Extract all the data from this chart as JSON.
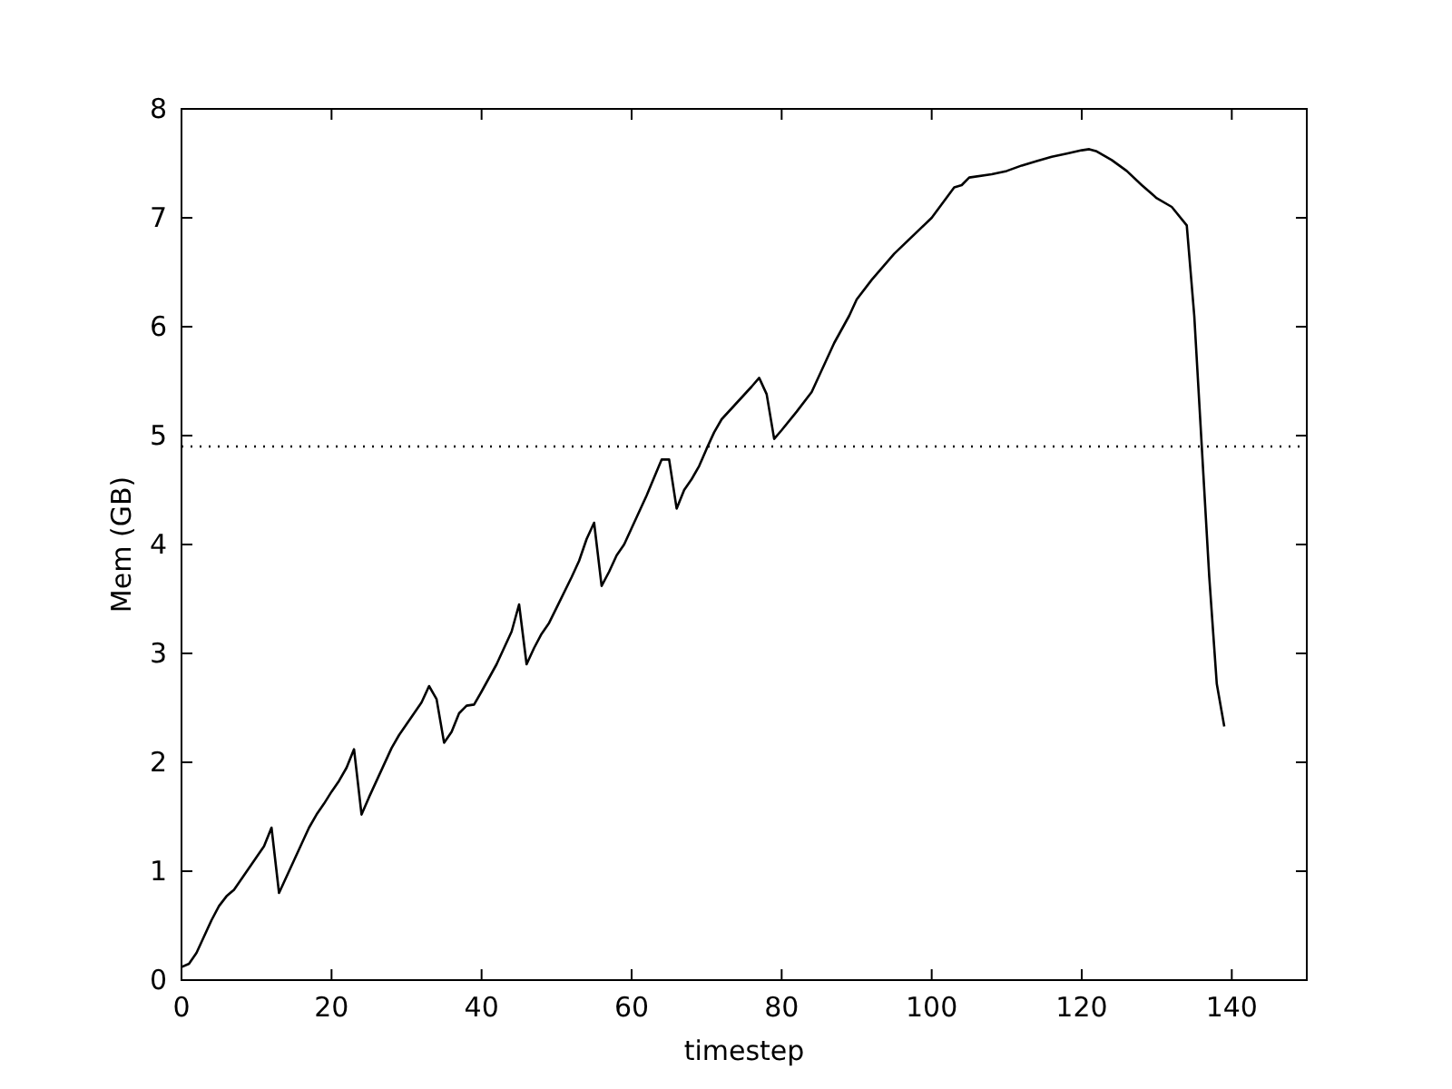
{
  "chart_data": {
    "type": "line",
    "xlabel": "timestep",
    "ylabel": "Mem (GB)",
    "xlim": [
      0,
      150
    ],
    "xticks": [
      0,
      20,
      40,
      60,
      80,
      100,
      120,
      140
    ],
    "ylim": [
      0,
      8
    ],
    "yticks": [
      0,
      1,
      2,
      3,
      4,
      5,
      6,
      7,
      8
    ],
    "grid": false,
    "line_style": "solid",
    "marker": "none",
    "ref_lines": [
      {
        "axis": "y",
        "value": 4.9,
        "line_style": "dotted",
        "color": "#000000"
      }
    ],
    "series": [
      {
        "color": "#000000",
        "x": [
          0,
          1,
          2,
          3,
          4,
          5,
          6,
          7,
          8,
          9,
          10,
          11,
          12,
          13,
          14,
          15,
          16,
          17,
          18,
          19,
          20,
          21,
          22,
          23,
          24,
          25,
          26,
          27,
          28,
          29,
          30,
          31,
          32,
          33,
          34,
          35,
          36,
          37,
          38,
          39,
          40,
          42,
          44,
          45,
          46,
          47,
          48,
          49,
          50,
          52,
          53,
          54,
          55,
          56,
          57,
          58,
          59,
          60,
          62,
          64,
          65,
          66,
          67,
          68,
          69,
          70,
          71,
          72,
          74,
          76,
          77,
          78,
          79,
          80,
          82,
          84,
          85,
          86,
          87,
          89,
          90,
          92,
          95,
          100,
          103,
          104,
          105,
          108,
          110,
          112,
          114,
          116,
          118,
          120,
          121,
          122,
          124,
          126,
          128,
          130,
          132,
          134,
          135,
          136,
          137,
          138,
          139
        ],
        "values": [
          0.12,
          0.15,
          0.25,
          0.4,
          0.55,
          0.68,
          0.77,
          0.83,
          0.93,
          1.03,
          1.13,
          1.23,
          1.4,
          0.8,
          0.95,
          1.1,
          1.25,
          1.4,
          1.52,
          1.62,
          1.73,
          1.83,
          1.95,
          2.12,
          1.52,
          1.68,
          1.83,
          1.98,
          2.13,
          2.25,
          2.35,
          2.45,
          2.55,
          2.7,
          2.58,
          2.18,
          2.28,
          2.45,
          2.52,
          2.53,
          2.65,
          2.9,
          3.2,
          3.45,
          2.9,
          3.05,
          3.18,
          3.28,
          3.42,
          3.7,
          3.85,
          4.05,
          4.2,
          3.62,
          3.75,
          3.9,
          4.0,
          4.15,
          4.45,
          4.78,
          4.78,
          4.33,
          4.5,
          4.6,
          4.72,
          4.88,
          5.03,
          5.15,
          5.3,
          5.45,
          5.53,
          5.38,
          4.97,
          5.05,
          5.22,
          5.4,
          5.55,
          5.7,
          5.85,
          6.1,
          6.25,
          6.43,
          6.67,
          7.0,
          7.28,
          7.3,
          7.37,
          7.4,
          7.43,
          7.48,
          7.52,
          7.56,
          7.59,
          7.62,
          7.63,
          7.61,
          7.53,
          7.43,
          7.3,
          7.18,
          7.1,
          6.93,
          6.1,
          4.9,
          3.7,
          2.72,
          2.33
        ]
      }
    ]
  }
}
